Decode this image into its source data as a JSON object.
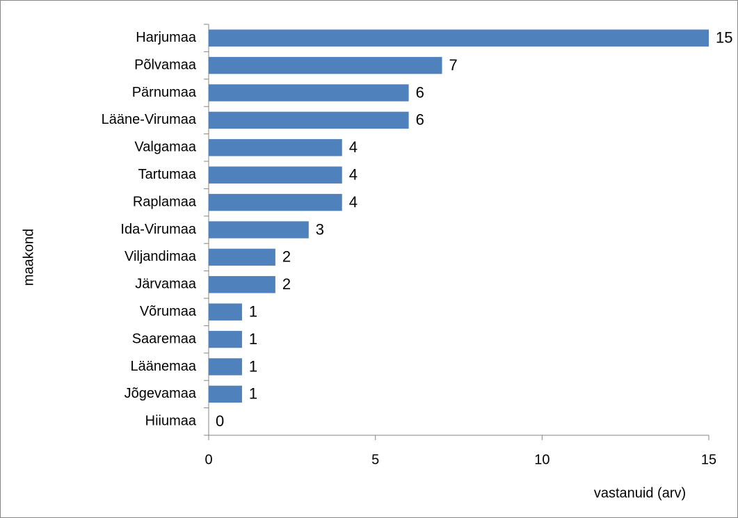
{
  "chart_data": {
    "type": "barh",
    "categories": [
      "Harjumaa",
      "Põlvamaa",
      "Pärnumaa",
      "Lääne-Virumaa",
      "Valgamaa",
      "Tartumaa",
      "Raplamaa",
      "Ida-Virumaa",
      "Viljandimaa",
      "Järvamaa",
      "Võrumaa",
      "Saaremaa",
      "Läänemaa",
      "Jõgevamaa",
      "Hiiumaa"
    ],
    "values": [
      15,
      7,
      6,
      6,
      4,
      4,
      4,
      3,
      2,
      2,
      1,
      1,
      1,
      1,
      0
    ],
    "color": "#4f81bd",
    "xlim": [
      0,
      15
    ],
    "xticks": [
      0,
      5,
      10,
      15
    ],
    "xlabel": "vastanuid (arv)",
    "ylabel": "maakond",
    "grid": false
  }
}
